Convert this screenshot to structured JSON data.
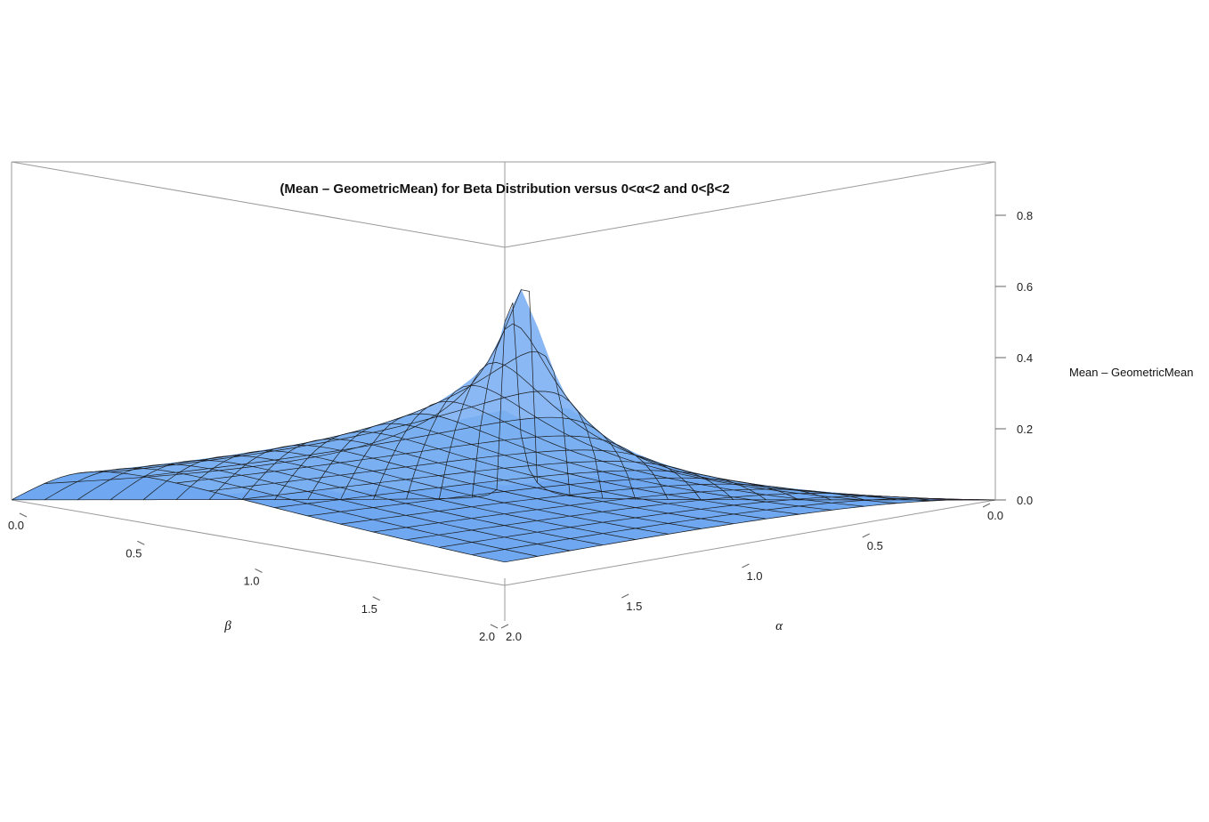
{
  "chart_data": {
    "type": "surface3d",
    "title": "(Mean – GeometricMean) for Beta Distribution versus 0<α<2 and 0<β<2",
    "xlabel": "α",
    "ylabel": "β",
    "zlabel": "Mean – GeometricMean",
    "xlim": [
      0,
      2
    ],
    "ylim": [
      0,
      2
    ],
    "zlim": [
      0,
      0.95
    ],
    "x_ticks": [
      "0.0",
      "0.5",
      "1.0",
      "1.5",
      "2.0"
    ],
    "y_ticks": [
      "0.0",
      "0.5",
      "1.0",
      "1.5",
      "2.0"
    ],
    "z_ticks": [
      "0.0",
      "0.2",
      "0.4",
      "0.6",
      "0.8"
    ],
    "surface_function": "mean minus geometric mean of Beta(α, β)",
    "mesh_lines": 15,
    "colors": {
      "surface": "#6fa8f0",
      "peak": "#f2b48a",
      "mesh": "#1a1a1a",
      "box": "#9a9a9a",
      "valley": "#4a2f5a"
    }
  }
}
